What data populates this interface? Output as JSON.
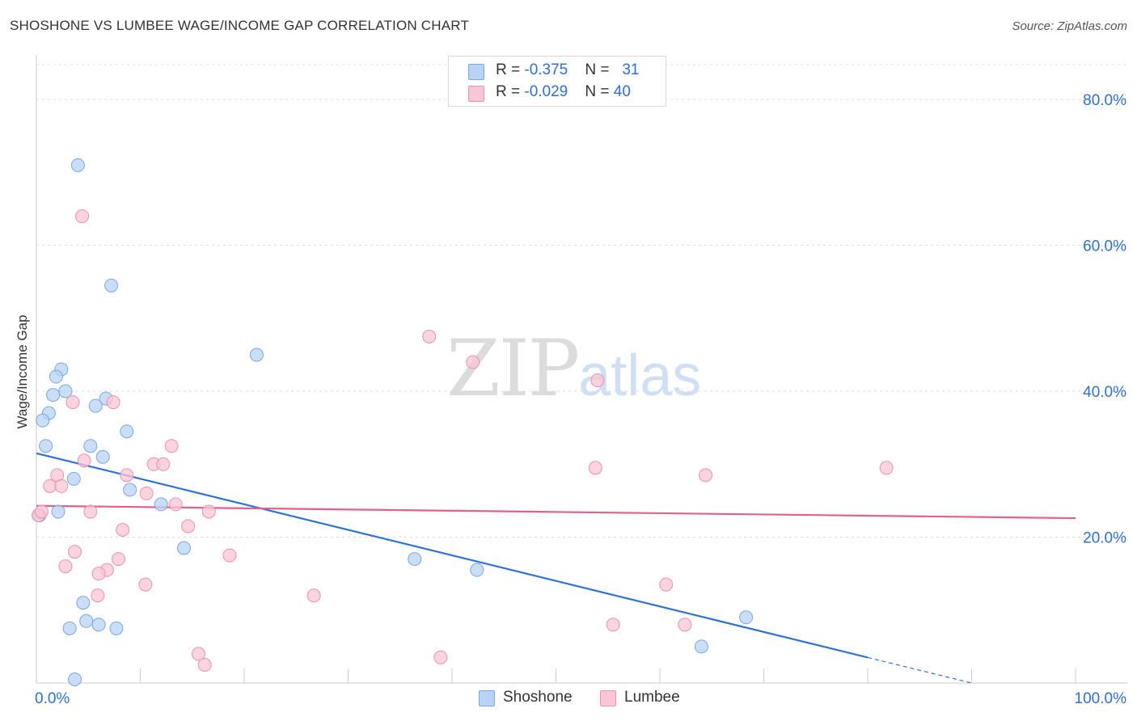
{
  "title": "SHOSHONE VS LUMBEE WAGE/INCOME GAP CORRELATION CHART",
  "source": "Source: ZipAtlas.com",
  "watermark": {
    "zip": "ZIP",
    "atlas": "atlas"
  },
  "legend": {
    "rows": [
      {
        "r_label": "R = ",
        "r_value": "-0.375",
        "n_label": "N = ",
        "n_value": "31",
        "color": "#b8d3f5",
        "border": "#7aa8e0"
      },
      {
        "r_label": "R = ",
        "r_value": "-0.029",
        "n_label": "N = ",
        "n_value": "40",
        "color": "#f9c6d6",
        "border": "#ec91ae"
      }
    ]
  },
  "bottom_legend": [
    {
      "label": "Shoshone",
      "color": "#b8d3f5",
      "border": "#7aa8e0"
    },
    {
      "label": "Lumbee",
      "color": "#f9c6d6",
      "border": "#ec91ae"
    }
  ],
  "chart_data": {
    "type": "scatter",
    "title": "SHOSHONE VS LUMBEE WAGE/INCOME GAP CORRELATION CHART",
    "xlabel": "",
    "ylabel": "Wage/Income Gap",
    "xlim": [
      0,
      100
    ],
    "ylim": [
      0,
      85
    ],
    "x_tick_labels": [
      {
        "value": 0,
        "label": "0.0%"
      },
      {
        "value": 100,
        "label": "100.0%"
      }
    ],
    "x_minor_ticks": [
      0,
      10,
      20,
      30,
      40,
      50,
      60,
      70,
      80,
      90,
      100
    ],
    "y_ticks": [
      {
        "value": 20,
        "label": "20.0%"
      },
      {
        "value": 40,
        "label": "40.0%"
      },
      {
        "value": 60,
        "label": "60.0%"
      },
      {
        "value": 80,
        "label": "80.0%"
      }
    ],
    "grid": true,
    "series": [
      {
        "name": "Shoshone",
        "color": "#7aa8e0",
        "fill": "#b8d3f5",
        "line_color": "#2f72d6",
        "trend": {
          "x0": 0,
          "y0": 31.5,
          "x1": 80,
          "y1": 3.5,
          "dashed_to_x": 90,
          "dashed_to_y": 0
        },
        "points": [
          [
            4.0,
            71.0
          ],
          [
            7.2,
            54.5
          ],
          [
            21.2,
            45.0
          ],
          [
            2.4,
            43.0
          ],
          [
            1.9,
            42.0
          ],
          [
            2.8,
            40.0
          ],
          [
            1.6,
            39.5
          ],
          [
            6.7,
            39.0
          ],
          [
            5.7,
            38.0
          ],
          [
            1.2,
            37.0
          ],
          [
            0.6,
            36.0
          ],
          [
            8.7,
            34.5
          ],
          [
            0.9,
            32.5
          ],
          [
            5.2,
            32.5
          ],
          [
            6.4,
            31.0
          ],
          [
            3.6,
            28.0
          ],
          [
            9.0,
            26.5
          ],
          [
            12.0,
            24.5
          ],
          [
            2.1,
            23.5
          ],
          [
            0.3,
            23.0
          ],
          [
            14.2,
            18.5
          ],
          [
            36.4,
            17.0
          ],
          [
            42.4,
            15.5
          ],
          [
            4.5,
            11.0
          ],
          [
            68.3,
            9.0
          ],
          [
            4.8,
            8.5
          ],
          [
            6.0,
            8.0
          ],
          [
            3.2,
            7.5
          ],
          [
            7.7,
            7.5
          ],
          [
            64.0,
            5.0
          ],
          [
            3.7,
            0.5
          ]
        ]
      },
      {
        "name": "Lumbee",
        "color": "#ec91ae",
        "fill": "#f9c6d6",
        "line_color": "#e35f8c",
        "trend": {
          "x0": 0,
          "y0": 24.3,
          "x1": 100,
          "y1": 22.6
        },
        "points": [
          [
            4.4,
            64.0
          ],
          [
            37.8,
            47.5
          ],
          [
            42.0,
            44.0
          ],
          [
            54.0,
            41.5
          ],
          [
            3.5,
            38.5
          ],
          [
            7.4,
            38.5
          ],
          [
            13.0,
            32.5
          ],
          [
            4.6,
            30.5
          ],
          [
            11.3,
            30.0
          ],
          [
            12.2,
            30.0
          ],
          [
            53.8,
            29.5
          ],
          [
            81.8,
            29.5
          ],
          [
            2.0,
            28.5
          ],
          [
            8.7,
            28.5
          ],
          [
            64.4,
            28.5
          ],
          [
            1.3,
            27.0
          ],
          [
            2.4,
            27.0
          ],
          [
            10.6,
            26.0
          ],
          [
            13.4,
            24.5
          ],
          [
            5.2,
            23.5
          ],
          [
            16.6,
            23.5
          ],
          [
            0.2,
            23.0
          ],
          [
            0.5,
            23.5
          ],
          [
            14.6,
            21.5
          ],
          [
            8.3,
            21.0
          ],
          [
            3.7,
            18.0
          ],
          [
            18.6,
            17.5
          ],
          [
            7.9,
            17.0
          ],
          [
            2.8,
            16.0
          ],
          [
            6.8,
            15.5
          ],
          [
            6.0,
            15.0
          ],
          [
            10.5,
            13.5
          ],
          [
            60.6,
            13.5
          ],
          [
            5.9,
            12.0
          ],
          [
            26.7,
            12.0
          ],
          [
            55.5,
            8.0
          ],
          [
            62.4,
            8.0
          ],
          [
            15.6,
            4.0
          ],
          [
            38.9,
            3.5
          ],
          [
            16.2,
            2.5
          ]
        ]
      }
    ]
  }
}
